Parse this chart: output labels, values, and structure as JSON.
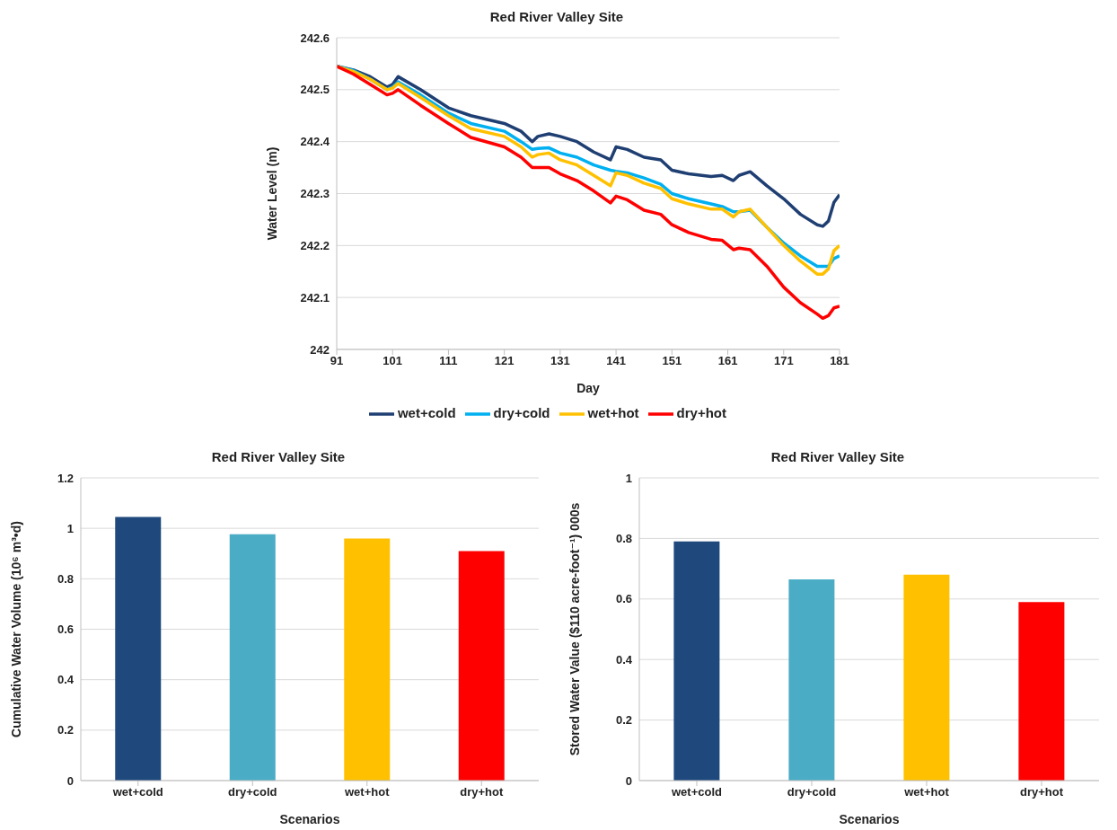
{
  "chart_data": [
    {
      "type": "line",
      "title": "Red River Valley Site",
      "xlabel": "Day",
      "ylabel": "Water Level (m)",
      "x": [
        91,
        94,
        97,
        100,
        101,
        102,
        106,
        111,
        115,
        121,
        124,
        126,
        127,
        129,
        131,
        134,
        137,
        140,
        141,
        143,
        146,
        149,
        151,
        154,
        158,
        160,
        162,
        163,
        165,
        168,
        171,
        174,
        177,
        178,
        179,
        180,
        181
      ],
      "xlim": [
        91,
        181
      ],
      "xticks": [
        91,
        101,
        111,
        121,
        131,
        141,
        151,
        161,
        171,
        181
      ],
      "ylim": [
        242,
        242.6
      ],
      "yticks": [
        242,
        242.1,
        242.2,
        242.3,
        242.4,
        242.5,
        242.6
      ],
      "grid": "y",
      "legend": "bottom",
      "series": [
        {
          "name": "wet+cold",
          "color": "#1f3f73",
          "values": [
            242.545,
            242.538,
            242.525,
            242.505,
            242.51,
            242.525,
            242.5,
            242.465,
            242.45,
            242.435,
            242.42,
            242.4,
            242.41,
            242.415,
            242.41,
            242.4,
            242.38,
            242.365,
            242.39,
            242.385,
            242.37,
            242.365,
            242.345,
            242.338,
            242.333,
            242.335,
            242.325,
            242.335,
            242.342,
            242.315,
            242.29,
            242.26,
            242.24,
            242.237,
            242.247,
            242.283,
            242.298
          ]
        },
        {
          "name": "dry+cold",
          "color": "#00b0f0",
          "values": [
            242.545,
            242.537,
            242.52,
            242.5,
            242.505,
            242.515,
            242.49,
            242.455,
            242.435,
            242.42,
            242.4,
            242.385,
            242.387,
            242.388,
            242.378,
            242.37,
            242.355,
            242.345,
            242.343,
            242.34,
            242.33,
            242.318,
            242.3,
            242.29,
            242.28,
            242.275,
            242.265,
            242.265,
            242.268,
            242.235,
            242.205,
            242.18,
            242.16,
            242.16,
            242.16,
            242.175,
            242.18
          ]
        },
        {
          "name": "wet+hot",
          "color": "#ffc000",
          "values": [
            242.545,
            242.535,
            242.52,
            242.5,
            242.503,
            242.512,
            242.485,
            242.45,
            242.425,
            242.41,
            242.39,
            242.37,
            242.375,
            242.378,
            242.365,
            242.355,
            242.335,
            242.315,
            242.34,
            242.335,
            242.32,
            242.31,
            242.29,
            242.28,
            242.27,
            242.27,
            242.255,
            242.265,
            242.27,
            242.235,
            242.2,
            242.17,
            242.145,
            242.145,
            242.155,
            242.19,
            242.2
          ]
        },
        {
          "name": "dry+hot",
          "color": "#ff0000",
          "values": [
            242.545,
            242.53,
            242.51,
            242.49,
            242.493,
            242.5,
            242.47,
            242.435,
            242.408,
            242.39,
            242.37,
            242.35,
            242.35,
            242.35,
            242.338,
            242.325,
            242.305,
            242.282,
            242.295,
            242.288,
            242.268,
            242.26,
            242.24,
            242.225,
            242.212,
            242.21,
            242.192,
            242.195,
            242.192,
            242.16,
            242.12,
            242.09,
            242.068,
            242.06,
            242.065,
            242.08,
            242.083
          ]
        }
      ]
    },
    {
      "type": "bar",
      "title": "Red River Valley Site",
      "xlabel": "Scenarios",
      "ylabel": "Cumulative Water Volume (10⁶ m³•d)",
      "categories": [
        "wet+cold",
        "dry+cold",
        "wet+hot",
        "dry+hot"
      ],
      "values": [
        1.045,
        0.977,
        0.96,
        0.91
      ],
      "colors": [
        "#1f497d",
        "#4bacc6",
        "#ffc000",
        "#ff0000"
      ],
      "ylim": [
        0,
        1.2
      ],
      "yticks": [
        0,
        0.2,
        0.4,
        0.6,
        0.8,
        1,
        1.2
      ],
      "grid": "y"
    },
    {
      "type": "bar",
      "title": "Red River Valley Site",
      "xlabel": "Scenarios",
      "ylabel": "Stored Water Value ($110 acre-foot⁻¹) 000s",
      "categories": [
        "wet+cold",
        "dry+cold",
        "wet+hot",
        "dry+hot"
      ],
      "values": [
        0.79,
        0.665,
        0.68,
        0.59
      ],
      "colors": [
        "#1f497d",
        "#4bacc6",
        "#ffc000",
        "#ff0000"
      ],
      "ylim": [
        0,
        1
      ],
      "yticks": [
        0,
        0.2,
        0.4,
        0.6,
        0.8,
        1
      ],
      "grid": "y"
    }
  ]
}
